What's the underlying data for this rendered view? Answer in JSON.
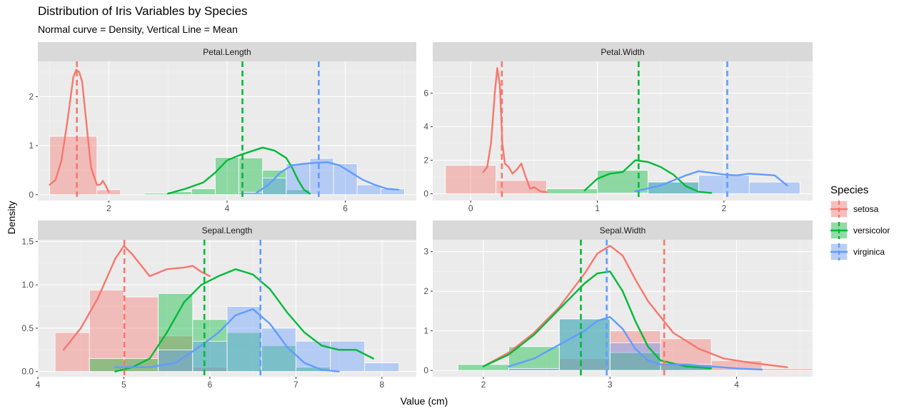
{
  "title": "Distribution of Iris Variables by Species",
  "subtitle": "Normal curve = Density, Vertical Line = Mean",
  "xlabel": "Value (cm)",
  "ylabel": "Density",
  "legend": {
    "title": "Species",
    "entries": [
      {
        "name": "setosa",
        "color": "#F8766D"
      },
      {
        "name": "versicolor",
        "color": "#00BA38"
      },
      {
        "name": "virginica",
        "color": "#619CFF"
      }
    ],
    "placement": "right"
  },
  "chart_data": [
    {
      "type": "histogram+density",
      "panel": "Petal.Length",
      "xlim": [
        0.8,
        7.2
      ],
      "ylim": [
        -0.12,
        2.72
      ],
      "xticks": [
        2,
        4,
        6
      ],
      "yticks": [
        0,
        1,
        2
      ],
      "grid": true,
      "bins": {
        "setosa": [
          [
            1.0,
            1.8,
            1.19
          ],
          [
            1.8,
            2.2,
            0.1
          ]
        ],
        "versicolor": [
          [
            2.6,
            3.0,
            0.03
          ],
          [
            3.0,
            3.4,
            0.06
          ],
          [
            3.4,
            3.8,
            0.12
          ],
          [
            3.8,
            4.2,
            0.76
          ],
          [
            4.2,
            4.6,
            0.75
          ],
          [
            4.6,
            5.0,
            0.5
          ],
          [
            5.0,
            5.4,
            0.1
          ]
        ],
        "virginica": [
          [
            4.2,
            4.6,
            0.05
          ],
          [
            4.6,
            5.0,
            0.34
          ],
          [
            5.0,
            5.4,
            0.63
          ],
          [
            5.4,
            5.8,
            0.74
          ],
          [
            5.8,
            6.2,
            0.63
          ],
          [
            6.2,
            6.6,
            0.2
          ],
          [
            6.6,
            7.0,
            0.12
          ]
        ]
      },
      "density": {
        "setosa": [
          [
            1.0,
            0.2
          ],
          [
            1.1,
            0.3
          ],
          [
            1.2,
            0.7
          ],
          [
            1.3,
            1.5
          ],
          [
            1.4,
            2.4
          ],
          [
            1.45,
            2.55
          ],
          [
            1.5,
            2.5
          ],
          [
            1.55,
            2.3
          ],
          [
            1.6,
            1.7
          ],
          [
            1.7,
            0.55
          ],
          [
            1.8,
            0.2
          ],
          [
            1.85,
            0.2
          ],
          [
            1.9,
            0.28
          ],
          [
            1.95,
            0.18
          ],
          [
            2.0,
            0.05
          ]
        ],
        "versicolor": [
          [
            3.0,
            0.02
          ],
          [
            3.3,
            0.12
          ],
          [
            3.6,
            0.25
          ],
          [
            3.8,
            0.45
          ],
          [
            4.0,
            0.7
          ],
          [
            4.2,
            0.8
          ],
          [
            4.4,
            0.88
          ],
          [
            4.6,
            0.96
          ],
          [
            4.8,
            0.9
          ],
          [
            5.0,
            0.75
          ],
          [
            5.1,
            0.55
          ],
          [
            5.2,
            0.3
          ],
          [
            5.3,
            0.1
          ],
          [
            5.4,
            0.02
          ]
        ],
        "virginica": [
          [
            4.5,
            0.04
          ],
          [
            4.7,
            0.2
          ],
          [
            4.9,
            0.45
          ],
          [
            5.1,
            0.6
          ],
          [
            5.3,
            0.63
          ],
          [
            5.5,
            0.65
          ],
          [
            5.7,
            0.66
          ],
          [
            5.9,
            0.6
          ],
          [
            6.1,
            0.45
          ],
          [
            6.3,
            0.3
          ],
          [
            6.5,
            0.2
          ],
          [
            6.7,
            0.12
          ],
          [
            6.9,
            0.1
          ]
        ]
      },
      "means": {
        "setosa": 1.46,
        "versicolor": 4.26,
        "virginica": 5.55
      }
    },
    {
      "type": "histogram+density",
      "panel": "Petal.Width",
      "xlim": [
        -0.3,
        2.7
      ],
      "ylim": [
        -0.4,
        7.9
      ],
      "xticks": [
        0,
        1,
        2
      ],
      "yticks": [
        0,
        2,
        4,
        6
      ],
      "grid": true,
      "bins": {
        "setosa": [
          [
            -0.2,
            0.2,
            1.7
          ],
          [
            0.2,
            0.6,
            0.8
          ],
          [
            0.6,
            1.0,
            0.05
          ]
        ],
        "versicolor": [
          [
            0.6,
            1.0,
            0.3
          ],
          [
            1.0,
            1.4,
            1.4
          ],
          [
            1.4,
            1.8,
            0.7
          ],
          [
            1.8,
            2.2,
            0.03
          ]
        ],
        "virginica": [
          [
            1.0,
            1.4,
            0.05
          ],
          [
            1.4,
            1.8,
            0.7
          ],
          [
            1.8,
            2.2,
            1.1
          ],
          [
            2.2,
            2.6,
            0.7
          ]
        ]
      },
      "density": {
        "setosa": [
          [
            0.1,
            1.3
          ],
          [
            0.13,
            1.6
          ],
          [
            0.16,
            3.0
          ],
          [
            0.19,
            6.0
          ],
          [
            0.21,
            7.5
          ],
          [
            0.23,
            6.5
          ],
          [
            0.25,
            3.0
          ],
          [
            0.27,
            1.8
          ],
          [
            0.3,
            1.6
          ],
          [
            0.33,
            1.2
          ],
          [
            0.37,
            1.5
          ],
          [
            0.4,
            1.8
          ],
          [
            0.43,
            1.1
          ],
          [
            0.47,
            0.3
          ],
          [
            0.5,
            0.4
          ],
          [
            0.55,
            0.15
          ],
          [
            0.6,
            0.1
          ]
        ],
        "versicolor": [
          [
            0.9,
            0.2
          ],
          [
            1.0,
            0.9
          ],
          [
            1.1,
            1.2
          ],
          [
            1.2,
            1.3
          ],
          [
            1.3,
            2.0
          ],
          [
            1.4,
            1.9
          ],
          [
            1.5,
            1.6
          ],
          [
            1.6,
            1.15
          ],
          [
            1.7,
            0.45
          ],
          [
            1.8,
            0.12
          ],
          [
            1.9,
            0.05
          ]
        ],
        "virginica": [
          [
            1.3,
            0.15
          ],
          [
            1.5,
            0.5
          ],
          [
            1.7,
            1.1
          ],
          [
            1.8,
            1.35
          ],
          [
            1.9,
            1.25
          ],
          [
            2.0,
            1.15
          ],
          [
            2.1,
            1.1
          ],
          [
            2.2,
            1.2
          ],
          [
            2.3,
            1.15
          ],
          [
            2.4,
            1.1
          ],
          [
            2.5,
            0.5
          ]
        ]
      },
      "means": {
        "setosa": 0.246,
        "versicolor": 1.326,
        "virginica": 2.026
      }
    },
    {
      "type": "histogram+density",
      "panel": "Sepal.Length",
      "xlim": [
        4.0,
        8.4
      ],
      "ylim": [
        -0.06,
        1.52
      ],
      "xticks": [
        4,
        5,
        6,
        7,
        8
      ],
      "yticks": [
        0.0,
        0.5,
        1.0,
        1.5
      ],
      "grid": true,
      "bins": {
        "setosa": [
          [
            4.2,
            4.6,
            0.45
          ],
          [
            4.6,
            5.0,
            0.94
          ],
          [
            5.0,
            5.4,
            0.86
          ],
          [
            5.4,
            5.8,
            0.41
          ],
          [
            5.8,
            6.2,
            0.05
          ]
        ],
        "versicolor": [
          [
            4.6,
            5.0,
            0.15
          ],
          [
            5.0,
            5.4,
            0.15
          ],
          [
            5.4,
            5.8,
            0.9
          ],
          [
            5.8,
            6.2,
            0.6
          ],
          [
            6.2,
            6.6,
            0.45
          ],
          [
            6.6,
            7.0,
            0.3
          ],
          [
            7.0,
            7.4,
            0.05
          ]
        ],
        "virginica": [
          [
            5.4,
            5.8,
            0.25
          ],
          [
            5.8,
            6.2,
            0.35
          ],
          [
            6.2,
            6.6,
            0.75
          ],
          [
            6.6,
            7.0,
            0.5
          ],
          [
            7.0,
            7.4,
            0.35
          ],
          [
            7.4,
            7.8,
            0.35
          ],
          [
            7.8,
            8.2,
            0.1
          ]
        ]
      },
      "density": {
        "setosa": [
          [
            4.3,
            0.25
          ],
          [
            4.5,
            0.5
          ],
          [
            4.7,
            0.85
          ],
          [
            4.9,
            1.3
          ],
          [
            5.0,
            1.45
          ],
          [
            5.1,
            1.35
          ],
          [
            5.3,
            1.1
          ],
          [
            5.5,
            1.18
          ],
          [
            5.7,
            1.2
          ],
          [
            5.8,
            1.22
          ],
          [
            5.9,
            1.15
          ],
          [
            6.0,
            1.1
          ]
        ],
        "versicolor": [
          [
            4.9,
            0.0
          ],
          [
            5.1,
            0.05
          ],
          [
            5.3,
            0.15
          ],
          [
            5.5,
            0.45
          ],
          [
            5.7,
            0.8
          ],
          [
            5.9,
            1.0
          ],
          [
            6.1,
            1.1
          ],
          [
            6.3,
            1.18
          ],
          [
            6.5,
            1.12
          ],
          [
            6.7,
            0.95
          ],
          [
            6.9,
            0.68
          ],
          [
            7.1,
            0.45
          ],
          [
            7.3,
            0.3
          ],
          [
            7.5,
            0.25
          ],
          [
            7.7,
            0.25
          ],
          [
            7.9,
            0.15
          ]
        ],
        "virginica": [
          [
            4.9,
            0.05
          ],
          [
            5.3,
            0.05
          ],
          [
            5.6,
            0.1
          ],
          [
            5.9,
            0.3
          ],
          [
            6.1,
            0.45
          ],
          [
            6.3,
            0.65
          ],
          [
            6.5,
            0.72
          ],
          [
            6.7,
            0.55
          ],
          [
            6.9,
            0.28
          ],
          [
            7.1,
            0.1
          ],
          [
            7.3,
            0.02
          ],
          [
            7.5,
            0.0
          ]
        ]
      },
      "means": {
        "setosa": 5.006,
        "versicolor": 5.936,
        "virginica": 6.588
      }
    },
    {
      "type": "histogram+density",
      "panel": "Sepal.Width",
      "xlim": [
        1.6,
        4.6
      ],
      "ylim": [
        -0.16,
        3.3
      ],
      "xticks": [
        2,
        3,
        4
      ],
      "yticks": [
        0,
        1,
        2,
        3
      ],
      "grid": true,
      "bins": {
        "setosa": [
          [
            2.2,
            2.6,
            0.05
          ],
          [
            2.6,
            3.0,
            0.3
          ],
          [
            3.0,
            3.4,
            1.0
          ],
          [
            3.4,
            3.8,
            0.8
          ],
          [
            3.8,
            4.2,
            0.25
          ],
          [
            4.2,
            4.6,
            0.05
          ]
        ],
        "versicolor": [
          [
            1.8,
            2.2,
            0.15
          ],
          [
            2.2,
            2.6,
            0.6
          ],
          [
            2.6,
            3.0,
            1.3
          ],
          [
            3.0,
            3.4,
            0.45
          ],
          [
            3.4,
            3.8,
            0.15
          ]
        ],
        "virginica": [
          [
            2.2,
            2.6,
            0.05
          ],
          [
            2.6,
            3.0,
            1.3
          ],
          [
            3.0,
            3.4,
            0.7
          ],
          [
            3.4,
            3.8,
            0.15
          ]
        ]
      },
      "density": {
        "setosa": [
          [
            2.0,
            0.1
          ],
          [
            2.2,
            0.45
          ],
          [
            2.4,
            0.95
          ],
          [
            2.6,
            1.6
          ],
          [
            2.8,
            2.45
          ],
          [
            2.9,
            2.95
          ],
          [
            3.0,
            3.15
          ],
          [
            3.1,
            2.9
          ],
          [
            3.2,
            2.3
          ],
          [
            3.3,
            1.75
          ],
          [
            3.4,
            1.35
          ],
          [
            3.5,
            0.95
          ],
          [
            3.7,
            0.55
          ],
          [
            3.9,
            0.3
          ],
          [
            4.1,
            0.2
          ],
          [
            4.4,
            0.08
          ]
        ],
        "versicolor": [
          [
            2.0,
            0.1
          ],
          [
            2.2,
            0.4
          ],
          [
            2.4,
            0.9
          ],
          [
            2.6,
            1.55
          ],
          [
            2.8,
            2.2
          ],
          [
            2.9,
            2.45
          ],
          [
            3.0,
            2.5
          ],
          [
            3.1,
            2.0
          ],
          [
            3.2,
            1.25
          ],
          [
            3.3,
            0.6
          ],
          [
            3.4,
            0.25
          ],
          [
            3.6,
            0.1
          ],
          [
            3.8,
            0.05
          ]
        ],
        "virginica": [
          [
            2.2,
            0.1
          ],
          [
            2.4,
            0.3
          ],
          [
            2.6,
            0.65
          ],
          [
            2.8,
            1.0
          ],
          [
            2.9,
            1.25
          ],
          [
            3.0,
            1.35
          ],
          [
            3.1,
            1.05
          ],
          [
            3.2,
            0.55
          ],
          [
            3.3,
            0.25
          ],
          [
            3.4,
            0.15
          ],
          [
            3.6,
            0.15
          ],
          [
            3.8,
            0.1
          ],
          [
            4.0,
            0.05
          ],
          [
            4.2,
            0.02
          ]
        ]
      },
      "means": {
        "setosa": 3.428,
        "versicolor": 2.77,
        "virginica": 2.974
      }
    }
  ]
}
